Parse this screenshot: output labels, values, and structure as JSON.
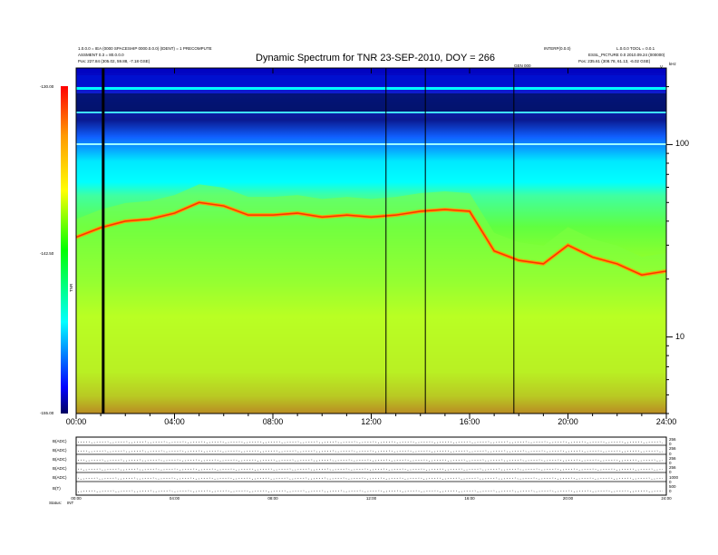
{
  "header": {
    "title": "Dynamic Spectrum for TNR 23-SEP-2010, DOY = 266",
    "left_line1": "1.0.0.0 = IEA (0000 SPACESHIP 0000.0.0.0) (IDENT) = 1 PRECOMPUTE",
    "left_line2": "ASSMENT 0.3 = 80.0.0.0",
    "left_line3": "Pos: 227.84 (305.02, 59.88, -7.18 GSE)",
    "right_line0": "INTERP(0.0.0)",
    "right_line1": "L.0.0.0 TOOL = 0.0.1",
    "right_line2": "ESSL_PICTURE 0.0 2010.09.24 (000000)",
    "right_line3": "Pos: 235.61 (308.78, 61.13, -6.02 GSE)",
    "right_marker": "GEN 000",
    "corner_label": "kHz",
    "corner_y": "V"
  },
  "colorbar": {
    "ticks": [
      "-130.00",
      "-142.50",
      "-155.00"
    ],
    "label": "TNR",
    "colors": [
      "#ff0000",
      "#ff9900",
      "#ffff00",
      "#00ff00",
      "#00ffff",
      "#0000ff",
      "#000040"
    ]
  },
  "chart_data": {
    "type": "heatmap",
    "title": "Dynamic Spectrum for TNR 23-SEP-2010, DOY = 266",
    "x_ticks": [
      "00:00",
      "04:00",
      "08:00",
      "12:00",
      "16:00",
      "20:00",
      "24:00"
    ],
    "x_range_hours": [
      0,
      24
    ],
    "y_scale": "log",
    "y_ticks": [
      "100",
      "10"
    ],
    "y_range_khz": [
      4,
      250
    ],
    "z_range_db": [
      -155.0,
      -130.0
    ],
    "dropout_lines_hours": [
      1.1,
      12.6,
      14.2,
      17.8
    ],
    "resonance_trace_khz": [
      {
        "t": 0,
        "f": 33
      },
      {
        "t": 1,
        "f": 37
      },
      {
        "t": 2,
        "f": 40
      },
      {
        "t": 3,
        "f": 41
      },
      {
        "t": 4,
        "f": 44
      },
      {
        "t": 5,
        "f": 50
      },
      {
        "t": 6,
        "f": 48
      },
      {
        "t": 7,
        "f": 43
      },
      {
        "t": 8,
        "f": 43
      },
      {
        "t": 9,
        "f": 44
      },
      {
        "t": 10,
        "f": 42
      },
      {
        "t": 11,
        "f": 43
      },
      {
        "t": 12,
        "f": 42
      },
      {
        "t": 13,
        "f": 43
      },
      {
        "t": 14,
        "f": 45
      },
      {
        "t": 15,
        "f": 46
      },
      {
        "t": 16,
        "f": 45
      },
      {
        "t": 17,
        "f": 28
      },
      {
        "t": 18,
        "f": 25
      },
      {
        "t": 19,
        "f": 24
      },
      {
        "t": 20,
        "f": 30
      },
      {
        "t": 21,
        "f": 26
      },
      {
        "t": 22,
        "f": 24
      },
      {
        "t": 23,
        "f": 21
      },
      {
        "t": 24,
        "f": 22
      }
    ]
  },
  "lower_panel": {
    "row_labels": [
      "B(ADC)",
      "B(ADC)",
      "B(ADC)",
      "B(ADC)",
      "B(ADC)",
      "B(T)"
    ],
    "right_values": [
      "256",
      "0",
      "256",
      "0",
      "256",
      "0",
      "256",
      "0",
      "1000",
      "0",
      "500",
      "0"
    ],
    "x_ticks": [
      "00:00",
      "04:00",
      "08:00",
      "12:00",
      "16:00",
      "20:00",
      "24:00"
    ],
    "status_label": "Status:",
    "status_value": "INT"
  }
}
